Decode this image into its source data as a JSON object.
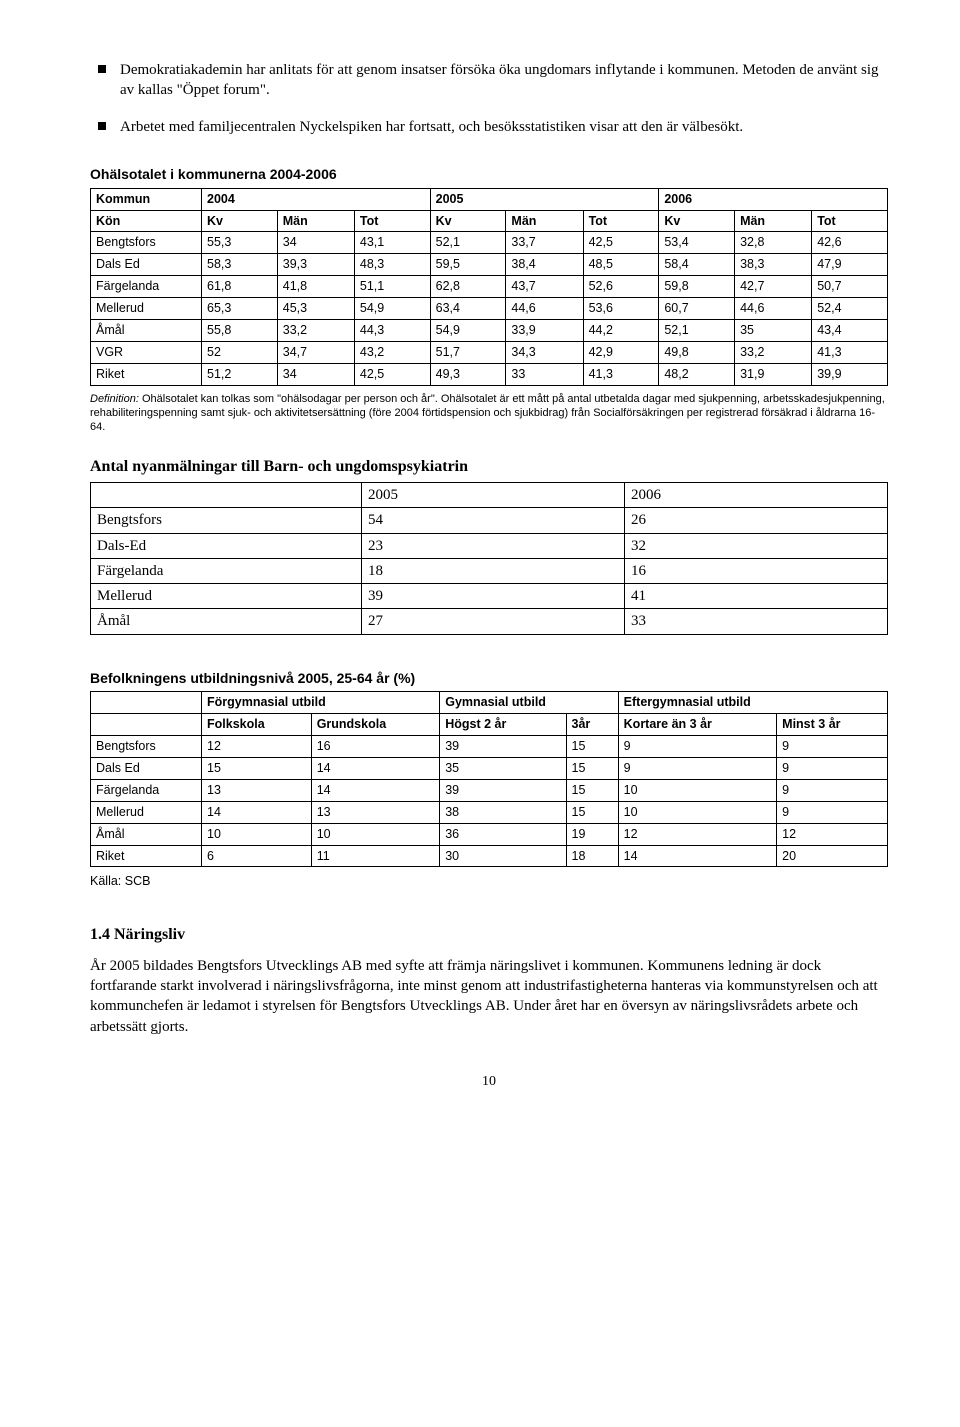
{
  "bullets": [
    "Demokratiakademin har anlitats för att genom insatser försöka öka ungdomars inflytande i kommunen. Metoden de använt sig av kallas \"Öppet forum\".",
    "Arbetet med familjecentralen Nyckelspiken har fortsatt, och besöksstatistiken visar att den är välbesökt."
  ],
  "table1": {
    "title": "Ohälsotalet i kommunerna 2004-2006",
    "header1": [
      "Kommun",
      "2004",
      "2005",
      "2006"
    ],
    "header2": [
      "Kön",
      "Kv",
      "Män",
      "Tot",
      "Kv",
      "Män",
      "Tot",
      "Kv",
      "Män",
      "Tot"
    ],
    "rows": [
      [
        "Bengtsfors",
        "55,3",
        "34",
        "43,1",
        "52,1",
        "33,7",
        "42,5",
        "53,4",
        "32,8",
        "42,6"
      ],
      [
        "Dals Ed",
        "58,3",
        "39,3",
        "48,3",
        "59,5",
        "38,4",
        "48,5",
        "58,4",
        "38,3",
        "47,9"
      ],
      [
        "Färgelanda",
        "61,8",
        "41,8",
        "51,1",
        "62,8",
        "43,7",
        "52,6",
        "59,8",
        "42,7",
        "50,7"
      ],
      [
        "Mellerud",
        "65,3",
        "45,3",
        "54,9",
        "63,4",
        "44,6",
        "53,6",
        "60,7",
        "44,6",
        "52,4"
      ],
      [
        "Åmål",
        "55,8",
        "33,2",
        "44,3",
        "54,9",
        "33,9",
        "44,2",
        "52,1",
        "35",
        "43,4"
      ],
      [
        "VGR",
        "52",
        "34,7",
        "43,2",
        "51,7",
        "34,3",
        "42,9",
        "49,8",
        "33,2",
        "41,3"
      ],
      [
        "Riket",
        "51,2",
        "34",
        "42,5",
        "49,3",
        "33",
        "41,3",
        "48,2",
        "31,9",
        "39,9"
      ]
    ],
    "footnote_def_label": "Definition:",
    "footnote_def": " Ohälsotalet kan tolkas som \"ohälsodagar per person och år\". Ohälsotalet är ett mått på antal utbetalda dagar med sjukpenning, arbetsskadesjukpenning, rehabiliteringspenning samt sjuk- och aktivitetsersättning (före 2004 förtidspension och sjukbidrag) från Socialförsäkringen per registrerad försäkrad i åldrarna 16- 64."
  },
  "table2": {
    "title": "Antal nyanmälningar till Barn- och ungdomspsykiatrin",
    "headers": [
      "",
      "2005",
      "2006"
    ],
    "rows": [
      [
        "Bengtsfors",
        "54",
        "26"
      ],
      [
        "Dals-Ed",
        "23",
        "32"
      ],
      [
        "Färgelanda",
        "18",
        "16"
      ],
      [
        "Mellerud",
        "39",
        "41"
      ],
      [
        "Åmål",
        "27",
        "33"
      ]
    ]
  },
  "table3": {
    "title": "Befolkningens utbildningsnivå 2005, 25-64 år (%)",
    "header1": [
      "",
      "Förgymnasial utbild",
      "Gymnasial utbild",
      "Eftergymnasial utbild"
    ],
    "header2": [
      "",
      "Folkskola",
      "Grundskola",
      "Högst 2 år",
      "3år",
      "Kortare än 3 år",
      "Minst 3 år"
    ],
    "rows": [
      [
        "Bengtsfors",
        "12",
        "16",
        "39",
        "15",
        "9",
        "9"
      ],
      [
        "Dals Ed",
        "15",
        "14",
        "35",
        "15",
        "9",
        "9"
      ],
      [
        "Färgelanda",
        "13",
        "14",
        "39",
        "15",
        "10",
        "9"
      ],
      [
        "Mellerud",
        "14",
        "13",
        "38",
        "15",
        "10",
        "9"
      ],
      [
        "Åmål",
        "10",
        "10",
        "36",
        "19",
        "12",
        "12"
      ],
      [
        "Riket",
        "6",
        "11",
        "30",
        "18",
        "14",
        "20"
      ]
    ],
    "source": "Källa: SCB"
  },
  "section": {
    "heading": "1.4 Näringsliv",
    "body": "År 2005 bildades Bengtsfors Utvecklings AB med syfte att främja näringslivet i kommunen. Kommunens ledning är dock fortfarande starkt involverad i näringslivsfrågorna, inte minst genom att industrifastigheterna hanteras via kommunstyrelsen och att kommunchefen är ledamot i styrelsen för Bengtsfors Utvecklings AB. Under året har en översyn av näringslivsrådets arbete och arbetssätt gjorts."
  },
  "pagenum": "10"
}
